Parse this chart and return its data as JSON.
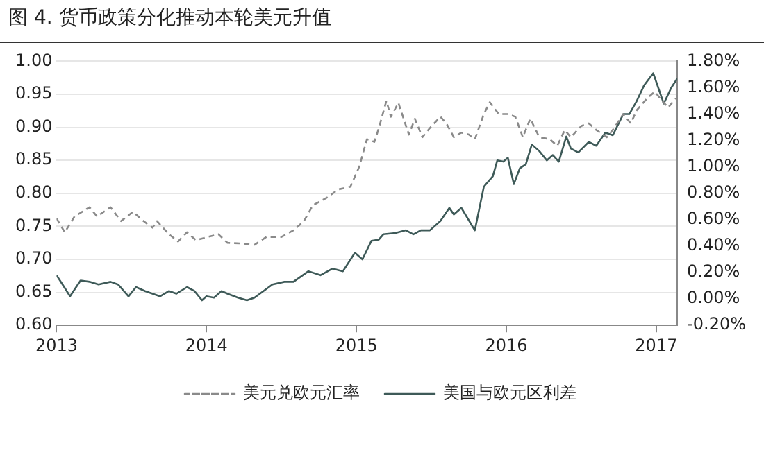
{
  "chart_data": {
    "type": "line",
    "title": "图 4. 货币政策分化推动本轮美元升值",
    "xlim": [
      2013,
      2017.14
    ],
    "xticks": [
      2013,
      2014,
      2015,
      2016,
      2017
    ],
    "ylim": [
      0.6,
      1.0
    ],
    "yticks": [
      {
        "value": 0.6,
        "label": "0.60"
      },
      {
        "value": 0.65,
        "label": "0.65"
      },
      {
        "value": 0.7,
        "label": "0.70"
      },
      {
        "value": 0.75,
        "label": "0.75"
      },
      {
        "value": 0.8,
        "label": "0.80"
      },
      {
        "value": 0.85,
        "label": "0.85"
      },
      {
        "value": 0.9,
        "label": "0.90"
      },
      {
        "value": 0.95,
        "label": "0.95"
      },
      {
        "value": 1.0,
        "label": "1.00"
      }
    ],
    "y2lim": [
      -0.2,
      1.8
    ],
    "y2ticks": [
      {
        "value": -0.2,
        "label": "-0.20%"
      },
      {
        "value": 0,
        "label": "0.00%"
      },
      {
        "value": 0.2,
        "label": "0.20%"
      },
      {
        "value": 0.4,
        "label": "0.40%"
      },
      {
        "value": 0.6,
        "label": "0.60%"
      },
      {
        "value": 0.8,
        "label": "0.80%"
      },
      {
        "value": 1.0,
        "label": "1.00%"
      },
      {
        "value": 1.2,
        "label": "1.20%"
      },
      {
        "value": 1.4,
        "label": "1.40%"
      },
      {
        "value": 1.6,
        "label": "1.60%"
      },
      {
        "value": 1.8,
        "label": "1.80%"
      }
    ],
    "grid": "y",
    "legend": "bottom",
    "marker": "none",
    "series": [
      {
        "name": "美元兑欧元汇率",
        "color": "#8a8a8a",
        "line_style": "dashed",
        "x": [
          2013.0,
          2013.055,
          2013.12,
          2013.22,
          2013.27,
          2013.36,
          2013.43,
          2013.51,
          2013.58,
          2013.64,
          2013.67,
          2013.75,
          2013.81,
          2013.87,
          2013.93,
          2014.01,
          2014.08,
          2014.14,
          2014.23,
          2014.32,
          2014.4,
          2014.5,
          2014.58,
          2014.65,
          2014.71,
          2014.8,
          2014.88,
          2014.96,
          2015.02,
          2015.07,
          2015.12,
          2015.15,
          2015.2,
          2015.23,
          2015.28,
          2015.35,
          2015.39,
          2015.44,
          2015.49,
          2015.56,
          2015.6,
          2015.65,
          2015.7,
          2015.75,
          2015.79,
          2015.85,
          2015.89,
          2015.95,
          2016.01,
          2016.06,
          2016.11,
          2016.16,
          2016.22,
          2016.29,
          2016.34,
          2016.39,
          2016.43,
          2016.5,
          2016.55,
          2016.6,
          2016.67,
          2016.71,
          2016.78,
          2016.83,
          2016.87,
          2016.94,
          2016.99,
          2017.04,
          2017.08,
          2017.13
        ],
        "values": [
          0.762,
          0.741,
          0.765,
          0.779,
          0.765,
          0.779,
          0.758,
          0.772,
          0.758,
          0.748,
          0.758,
          0.738,
          0.727,
          0.741,
          0.729,
          0.734,
          0.738,
          0.725,
          0.724,
          0.722,
          0.734,
          0.734,
          0.744,
          0.758,
          0.782,
          0.793,
          0.806,
          0.81,
          0.841,
          0.882,
          0.878,
          0.899,
          0.94,
          0.916,
          0.937,
          0.889,
          0.913,
          0.885,
          0.899,
          0.916,
          0.906,
          0.885,
          0.892,
          0.889,
          0.882,
          0.92,
          0.938,
          0.92,
          0.92,
          0.916,
          0.885,
          0.913,
          0.885,
          0.882,
          0.872,
          0.896,
          0.885,
          0.902,
          0.906,
          0.896,
          0.885,
          0.896,
          0.92,
          0.906,
          0.926,
          0.944,
          0.954,
          0.94,
          0.93,
          0.944
        ]
      },
      {
        "name": "美国与欧元区利差",
        "color": "#3e5a58",
        "line_style": "solid",
        "axis": "y2",
        "x": [
          2013.0,
          2013.04,
          2013.09,
          2013.16,
          2013.22,
          2013.28,
          2013.36,
          2013.41,
          2013.48,
          2013.53,
          2013.59,
          2013.69,
          2013.75,
          2013.8,
          2013.87,
          2013.92,
          2013.97,
          2014.0,
          2014.05,
          2014.1,
          2014.14,
          2014.21,
          2014.27,
          2014.32,
          2014.44,
          2014.52,
          2014.58,
          2014.68,
          2014.76,
          2014.84,
          2014.91,
          2014.99,
          2015.04,
          2015.1,
          2015.15,
          2015.18,
          2015.26,
          2015.33,
          2015.38,
          2015.43,
          2015.49,
          2015.56,
          2015.62,
          2015.65,
          2015.7,
          2015.79,
          2015.85,
          2015.91,
          2015.94,
          2015.98,
          2016.01,
          2016.05,
          2016.09,
          2016.13,
          2016.17,
          2016.22,
          2016.27,
          2016.31,
          2016.35,
          2016.4,
          2016.43,
          2016.48,
          2016.55,
          2016.6,
          2016.66,
          2016.71,
          2016.78,
          2016.82,
          2016.87,
          2016.92,
          2016.98,
          2017.05,
          2017.1,
          2017.14
        ],
        "values": [
          0.18,
          0.11,
          0.02,
          0.14,
          0.13,
          0.11,
          0.13,
          0.11,
          0.02,
          0.09,
          0.06,
          0.02,
          0.06,
          0.04,
          0.09,
          0.06,
          -0.01,
          0.02,
          0.01,
          0.06,
          0.04,
          0.01,
          -0.01,
          0.01,
          0.11,
          0.13,
          0.13,
          0.21,
          0.18,
          0.23,
          0.21,
          0.35,
          0.3,
          0.44,
          0.45,
          0.49,
          0.5,
          0.52,
          0.49,
          0.52,
          0.52,
          0.59,
          0.69,
          0.64,
          0.69,
          0.52,
          0.85,
          0.93,
          1.05,
          1.04,
          1.07,
          0.87,
          0.99,
          1.02,
          1.17,
          1.12,
          1.05,
          1.09,
          1.04,
          1.23,
          1.14,
          1.11,
          1.19,
          1.16,
          1.26,
          1.24,
          1.4,
          1.4,
          1.5,
          1.62,
          1.71,
          1.48,
          1.6,
          1.67
        ]
      }
    ]
  }
}
